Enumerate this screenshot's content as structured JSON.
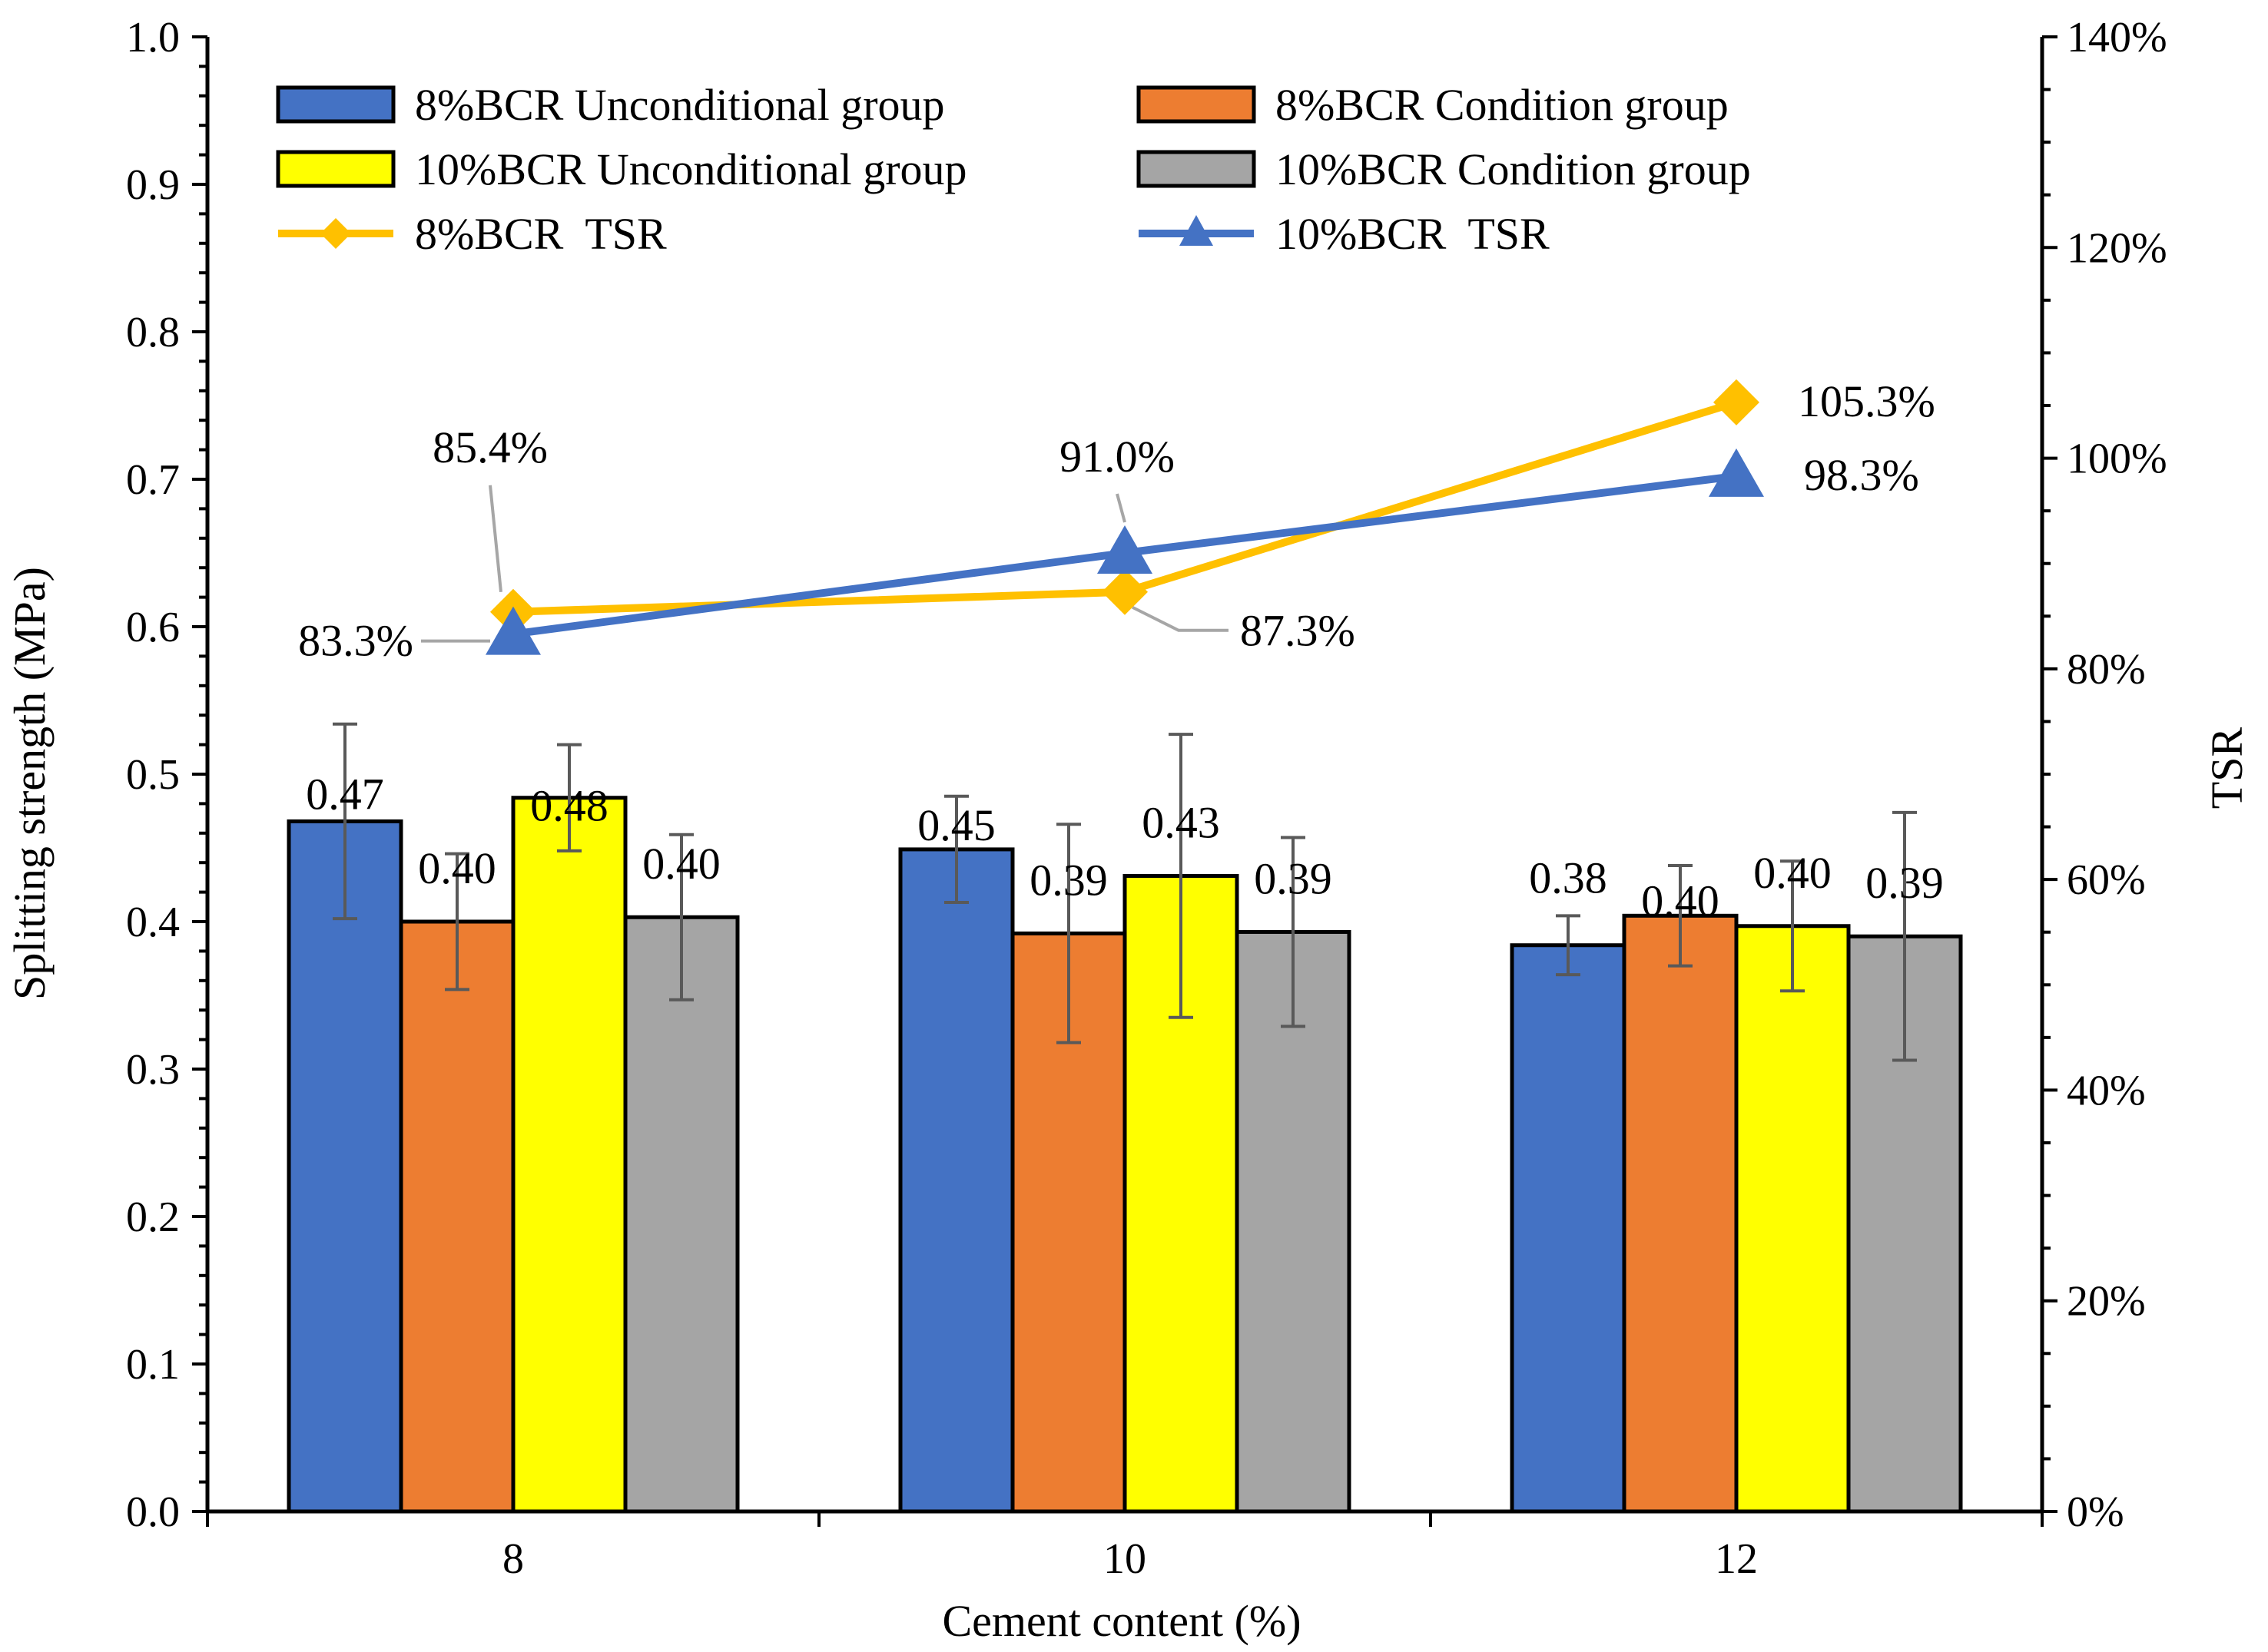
{
  "chart_data": {
    "type": "bar",
    "categories": [
      "8",
      "10",
      "12"
    ],
    "xlabel": "Cement content (%)",
    "ylabel": "Splitting strength (MPa)",
    "y2label": "TSR",
    "ylim": [
      0,
      1.0
    ],
    "y2lim": [
      0,
      140
    ],
    "y_ticks": [
      {
        "v": 0.0,
        "label": "0.0"
      },
      {
        "v": 0.1,
        "label": "0.1"
      },
      {
        "v": 0.2,
        "label": "0.2"
      },
      {
        "v": 0.3,
        "label": "0.3"
      },
      {
        "v": 0.4,
        "label": "0.4"
      },
      {
        "v": 0.5,
        "label": "0.5"
      },
      {
        "v": 0.6,
        "label": "0.6"
      },
      {
        "v": 0.7,
        "label": "0.7"
      },
      {
        "v": 0.8,
        "label": "0.8"
      },
      {
        "v": 0.9,
        "label": "0.9"
      },
      {
        "v": 1.0,
        "label": "1.0"
      }
    ],
    "y2_ticks": [
      {
        "v": 0,
        "label": "0%"
      },
      {
        "v": 20,
        "label": "20%"
      },
      {
        "v": 40,
        "label": "40%"
      },
      {
        "v": 60,
        "label": "60%"
      },
      {
        "v": 80,
        "label": "80%"
      },
      {
        "v": 100,
        "label": "100%"
      },
      {
        "v": 120,
        "label": "120%"
      },
      {
        "v": 140,
        "label": "140%"
      }
    ],
    "bar_series": [
      {
        "name": "8%BCR Unconditional group",
        "color": "#4472C4",
        "values": [
          0.468,
          0.449,
          0.384
        ],
        "errors": [
          0.066,
          0.036,
          0.02
        ],
        "labels": [
          "0.47",
          "0.45",
          "0.38"
        ]
      },
      {
        "name": "8%BCR Condition group",
        "color": "#ED7D31",
        "values": [
          0.4,
          0.392,
          0.404
        ],
        "errors": [
          0.046,
          0.074,
          0.034
        ],
        "labels": [
          "0.40",
          "0.39",
          "0.40"
        ]
      },
      {
        "name": "10%BCR Unconditional group",
        "color": "#FFFF00",
        "values": [
          0.484,
          0.431,
          0.397
        ],
        "errors": [
          0.036,
          0.096,
          0.044
        ],
        "labels": [
          "0.48",
          "0.43",
          "0.40"
        ]
      },
      {
        "name": "10%BCR Condition group",
        "color": "#A5A5A5",
        "values": [
          0.403,
          0.393,
          0.39
        ],
        "errors": [
          0.056,
          0.064,
          0.084
        ],
        "labels": [
          "0.40",
          "0.39",
          "0.39"
        ]
      }
    ],
    "line_series": [
      {
        "name": "8%BCR  TSR",
        "color": "#FFC000",
        "marker": "diamond",
        "values": [
          85.4,
          87.3,
          105.3
        ],
        "labels": [
          "85.4%",
          "87.3%",
          "105.3%"
        ]
      },
      {
        "name": "10%BCR  TSR",
        "color": "#4472C4",
        "marker": "triangle",
        "values": [
          83.3,
          91.0,
          98.3
        ],
        "labels": [
          "83.3%",
          "91.0%",
          "98.3%"
        ]
      }
    ]
  }
}
